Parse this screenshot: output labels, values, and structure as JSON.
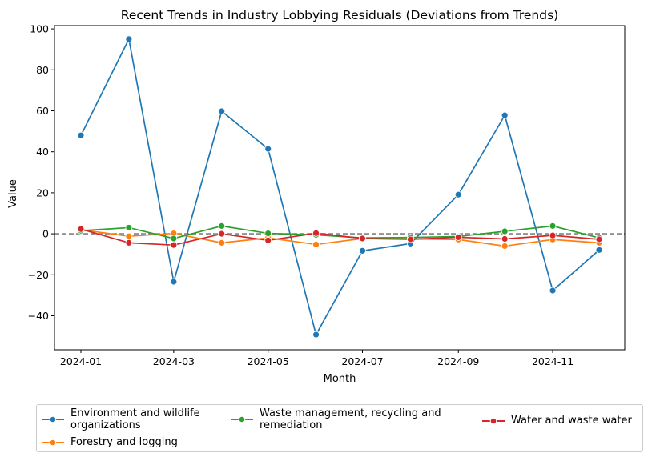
{
  "chart_data": {
    "type": "line",
    "title": "Recent Trends in Industry Lobbying Residuals (Deviations from Trends)",
    "xlabel": "Month",
    "ylabel": "Value",
    "x": [
      "2024-01-01",
      "2024-02-01",
      "2024-03-01",
      "2024-04-01",
      "2024-05-01",
      "2024-06-01",
      "2024-07-01",
      "2024-08-01",
      "2024-09-01",
      "2024-10-01",
      "2024-11-01",
      "2024-12-01"
    ],
    "xticks": [
      "2024-01",
      "2024-03",
      "2024-05",
      "2024-07",
      "2024-09",
      "2024-11"
    ],
    "yticks": [
      -40,
      -20,
      0,
      20,
      40,
      60,
      80,
      100
    ],
    "ylim": [
      -56.6,
      101.6
    ],
    "grid": false,
    "reference_line": {
      "y": 0,
      "style": "dashed",
      "color": "#808080"
    },
    "legend_position": "bottom",
    "series": [
      {
        "name": "Environment and wildlife organizations",
        "color": "#1f77b4",
        "values": [
          48,
          95,
          -23.4,
          59.8,
          41.4,
          -49.2,
          -8.3,
          -4.8,
          19.1,
          57.8,
          -27.7,
          -7.9
        ]
      },
      {
        "name": "Forestry and logging",
        "color": "#ff7f0e",
        "values": [
          2,
          -1.2,
          0.2,
          -4.4,
          -2,
          -5.2,
          -2.3,
          -2.5,
          -2.8,
          -6,
          -2.8,
          -4.4
        ]
      },
      {
        "name": "Waste management, recycling and remediation",
        "color": "#2ca02c",
        "values": [
          1.5,
          3,
          -2.3,
          3.8,
          0.2,
          -0.5,
          -2,
          -1.8,
          -1.3,
          1.2,
          3.8,
          -2
        ]
      },
      {
        "name": "Water and waste water",
        "color": "#d62728",
        "values": [
          2.3,
          -4.4,
          -5.5,
          0,
          -3.2,
          0.3,
          -2.3,
          -2.7,
          -1.7,
          -2.5,
          -0.8,
          -2.7
        ]
      }
    ]
  },
  "legend": {
    "items": [
      {
        "line1": "Environment and wildlife",
        "line2": "organizations"
      },
      {
        "line1": "Forestry and logging",
        "line2": ""
      },
      {
        "line1": "Waste management, recycling and",
        "line2": "remediation"
      },
      {
        "line1": "Water and waste water",
        "line2": ""
      }
    ]
  }
}
